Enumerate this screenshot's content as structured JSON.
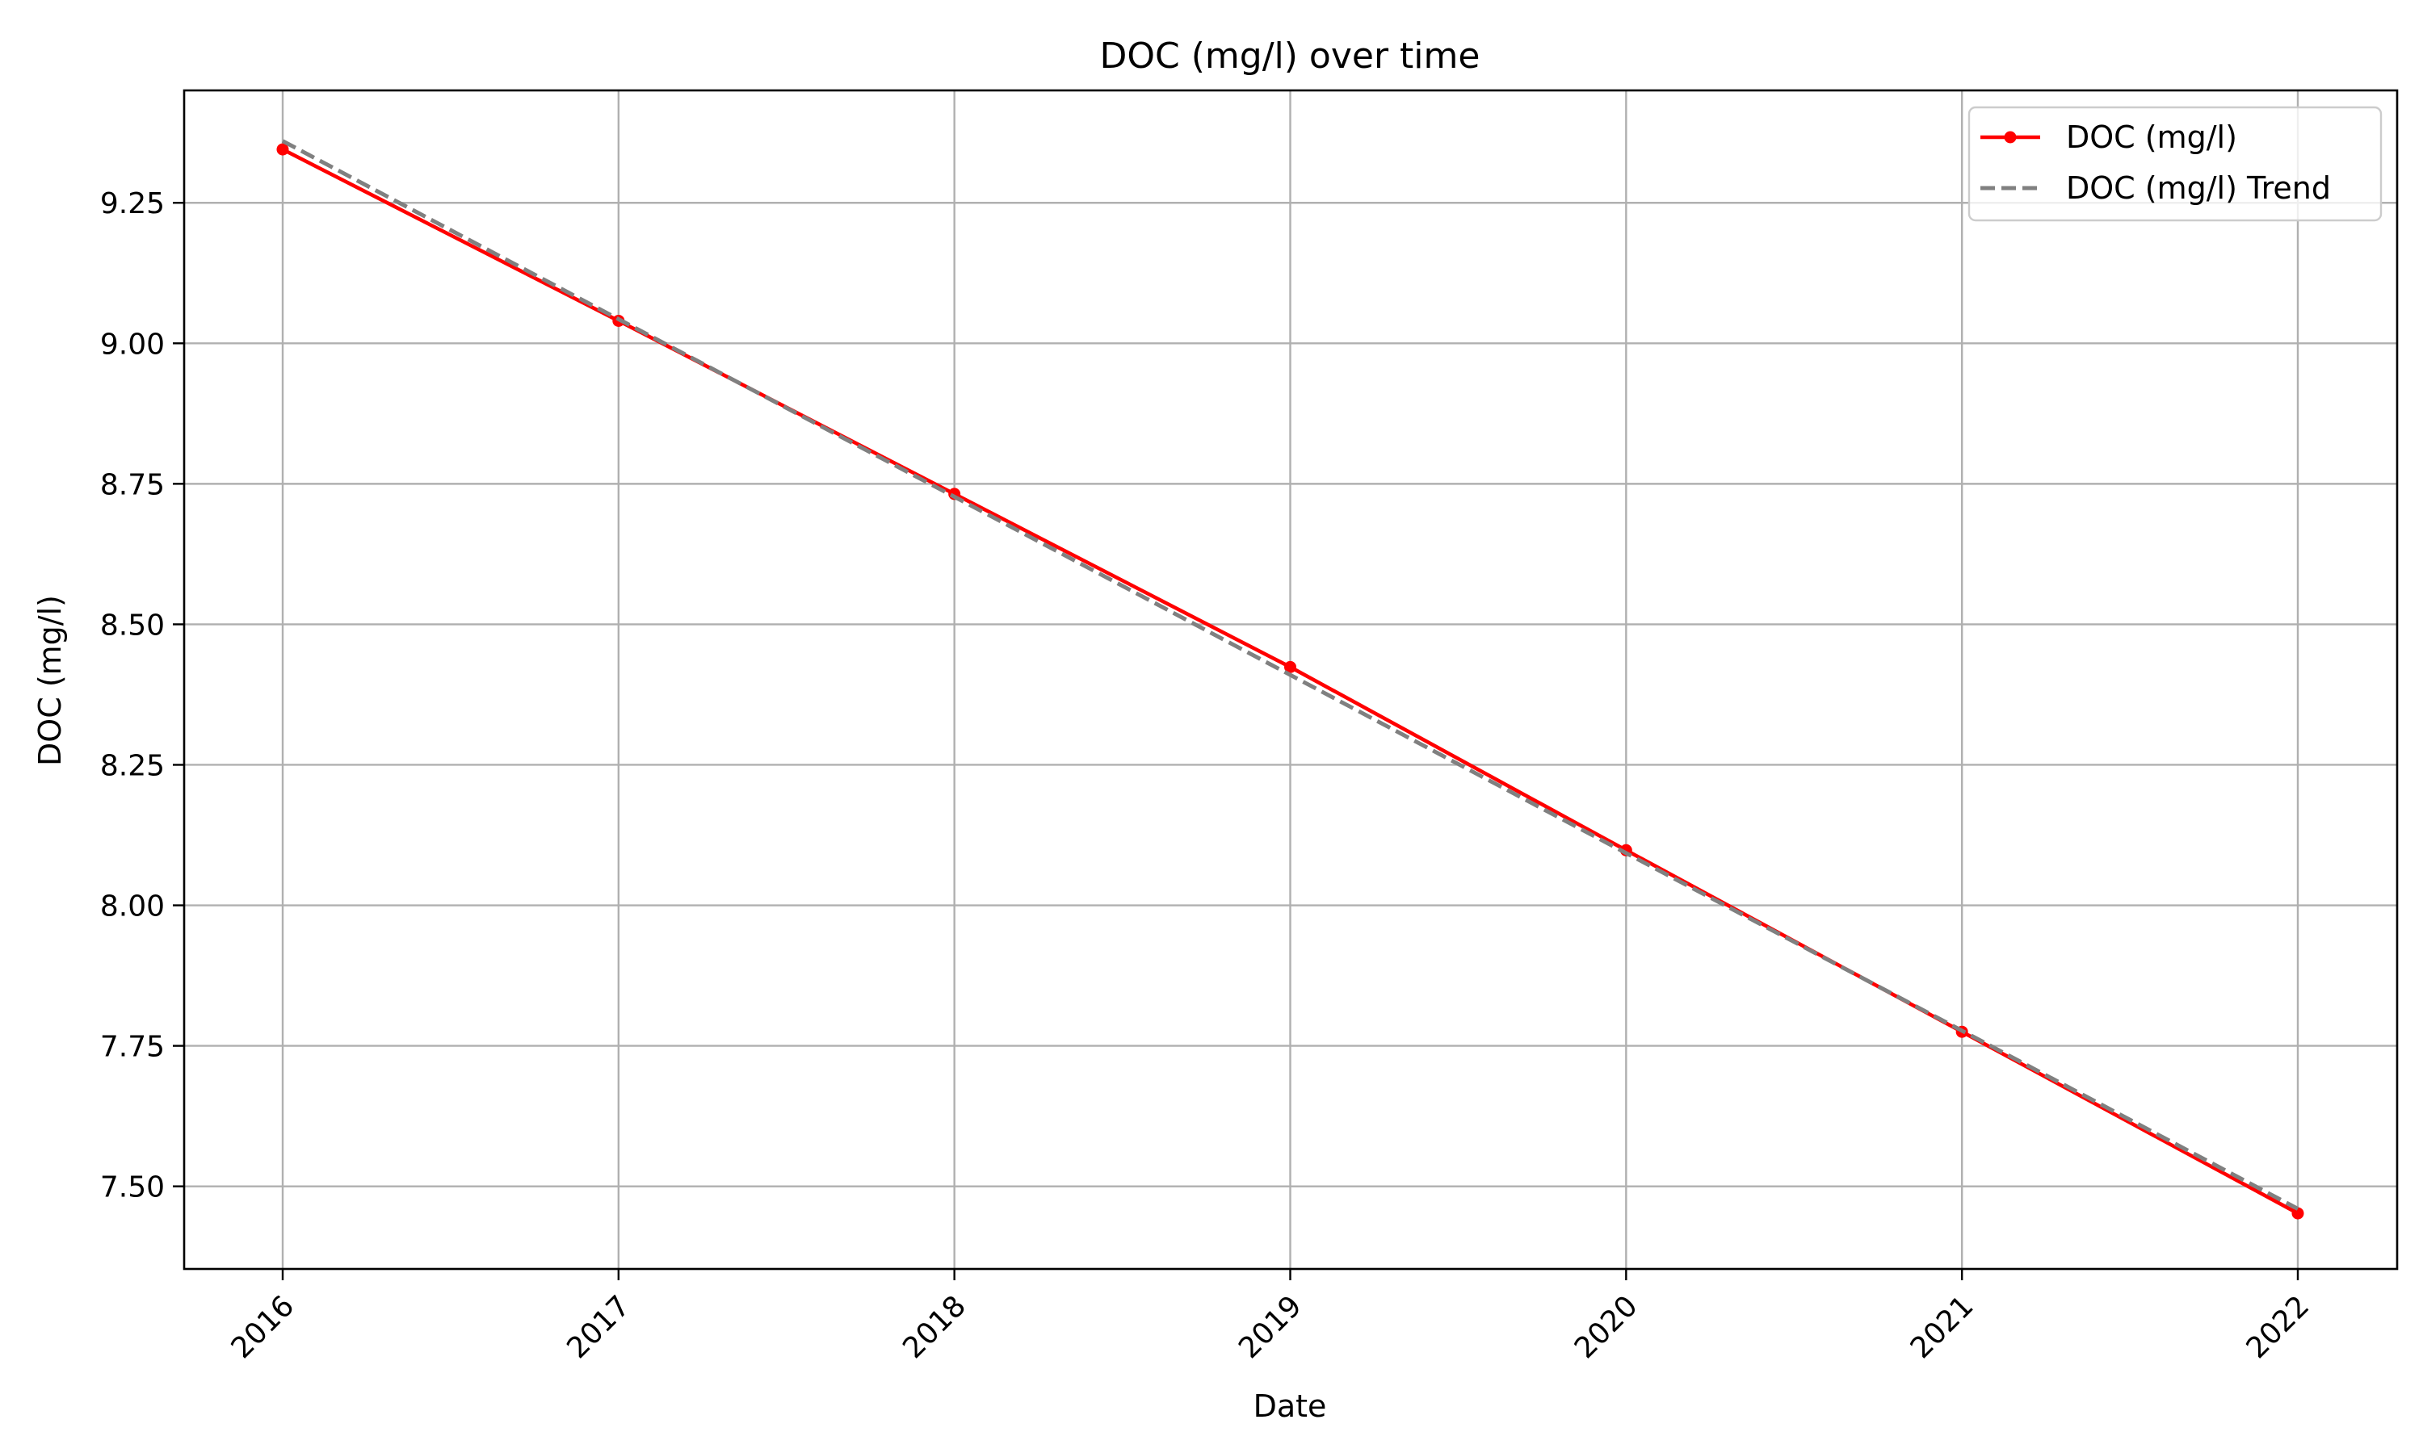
{
  "chart_data": {
    "type": "line",
    "title": "DOC (mg/l) over time",
    "xlabel": "Date",
    "ylabel": "DOC (mg/l)",
    "x": [
      "2016",
      "2017",
      "2018",
      "2019",
      "2020",
      "2021",
      "2022"
    ],
    "x_ticks": [
      "2016",
      "2017",
      "2018",
      "2019",
      "2020",
      "2021",
      "2022"
    ],
    "y_ticks": [
      "7.50",
      "7.75",
      "8.00",
      "8.25",
      "8.50",
      "8.75",
      "9.00",
      "9.25"
    ],
    "ylim": [
      7.353,
      9.45
    ],
    "grid": true,
    "legend_position": "top-right",
    "series": [
      {
        "name": "DOC (mg/l)",
        "color": "#ff0000",
        "style": "solid-with-markers",
        "values": [
          9.345,
          9.04,
          8.732,
          8.424,
          8.098,
          7.775,
          7.452
        ]
      },
      {
        "name": "DOC (mg/l) Trend",
        "color": "#808080",
        "style": "dashed",
        "values": [
          9.36,
          9.043,
          8.727,
          8.41,
          8.093,
          7.777,
          7.46
        ]
      }
    ]
  }
}
